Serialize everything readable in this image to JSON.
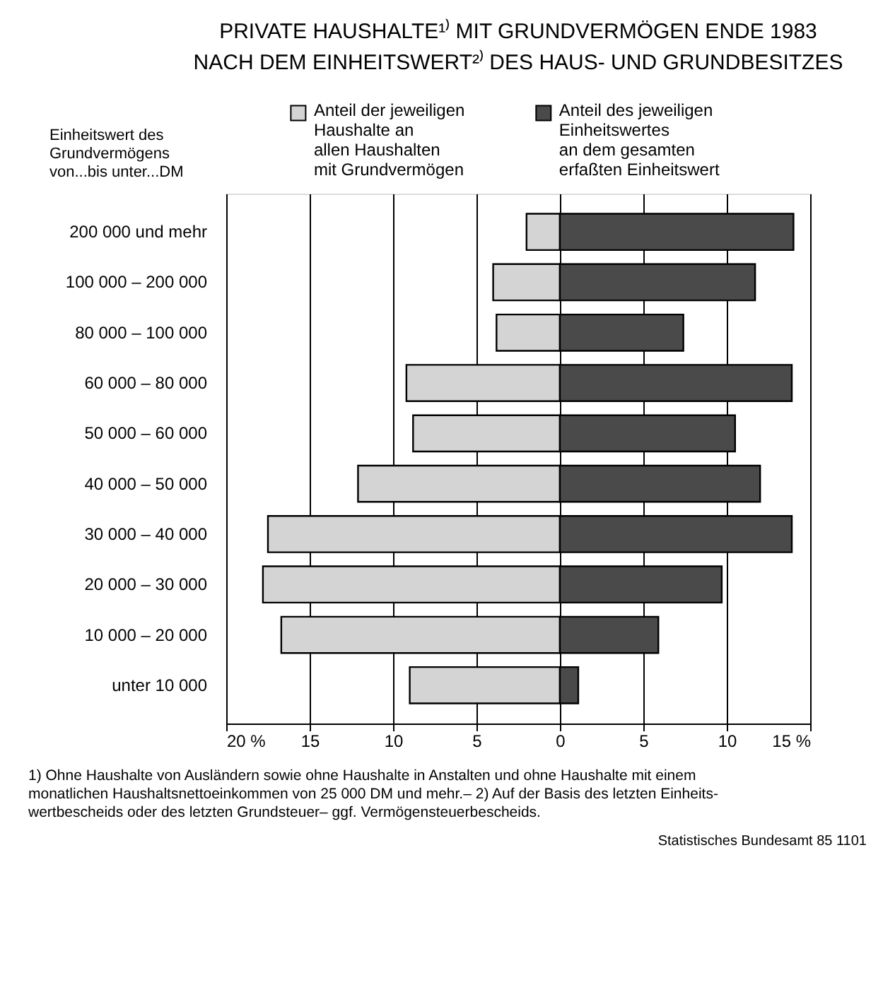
{
  "chart_data": {
    "type": "bar",
    "orientation": "horizontal",
    "stacked": true,
    "title": "PRIVATE HAUSHALTE¹⁾ MIT GRUNDVERMÖGEN ENDE 1983\nNACH DEM EINHEITSWERT²⁾ DES HAUS- UND GRUNDBESITZES",
    "ylabel": "Einheitswert des\nGrundvermögens\nvon...bis unter...DM",
    "categories": [
      "200 000 und mehr",
      "100 000 – 200 000",
      "80 000 – 100 000",
      "60 000 – 80 000",
      "50 000 – 60 000",
      "40 000 – 50 000",
      "30 000 – 40 000",
      "20 000 – 30 000",
      "10 000 – 20 000",
      "unter 10 000"
    ],
    "series": [
      {
        "name": "Anteil der jeweiligen\nHaushalte an\nallen Haushalten\nmit Grundvermögen",
        "color": "#d4d4d4",
        "values": [
          -2.0,
          -4.0,
          -3.8,
          -9.2,
          -8.8,
          -12.1,
          -17.5,
          -17.8,
          -16.7,
          -9.0
        ]
      },
      {
        "name": "Anteil des jeweiligen\nEinheitswertes\nan dem gesamten\nerfaßten Einheitswert",
        "color": "#4a4a4a",
        "values": [
          14.0,
          11.7,
          7.4,
          13.9,
          10.5,
          12.0,
          13.9,
          9.7,
          5.9,
          1.1
        ]
      }
    ],
    "xlim": [
      -20,
      15
    ],
    "xticks": [
      {
        "value": -20,
        "label": "20 %"
      },
      {
        "value": -15,
        "label": "15"
      },
      {
        "value": -10,
        "label": "10"
      },
      {
        "value": -5,
        "label": "5"
      },
      0,
      5,
      10,
      {
        "value": 15,
        "label": "15 %"
      }
    ],
    "grid": "x",
    "legend": "top",
    "annotations": [
      "1) Ohne Haushalte von Ausländern sowie ohne Haushalte in Anstalten und ohne Haushalte mit einem\nmonatlichen Haushaltsnettoeinkommen von 25 000 DM und mehr.– 2) Auf der Basis des letzten Einheits-\nwertbescheids oder des letzten Grundsteuer– ggf. Vermögensteuerbescheids.",
      "Statistisches Bundesamt 85 1101"
    ]
  }
}
